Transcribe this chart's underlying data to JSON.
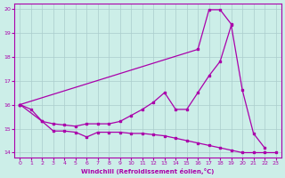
{
  "xlabel": "Windchill (Refroidissement éolien,°C)",
  "bg_color": "#cceee8",
  "line_color": "#aa00aa",
  "xlim": [
    -0.5,
    23.5
  ],
  "ylim": [
    13.8,
    20.2
  ],
  "xticks": [
    0,
    1,
    2,
    3,
    4,
    5,
    6,
    7,
    8,
    9,
    10,
    11,
    12,
    13,
    14,
    15,
    16,
    17,
    18,
    19,
    20,
    21,
    22,
    23
  ],
  "yticks": [
    14,
    15,
    16,
    17,
    18,
    19,
    20
  ],
  "line1_x": [
    0,
    1,
    2,
    3,
    4,
    5,
    6,
    7,
    8,
    9,
    10,
    11,
    12,
    13,
    14,
    15,
    16,
    17,
    18,
    19,
    20,
    21,
    22,
    23
  ],
  "line1_y": [
    16.0,
    15.8,
    15.3,
    14.9,
    14.9,
    14.85,
    14.65,
    14.85,
    14.85,
    14.85,
    14.8,
    14.8,
    14.75,
    14.7,
    14.6,
    14.5,
    14.4,
    14.3,
    14.2,
    14.1,
    14.0,
    14.0,
    14.0,
    14.0
  ],
  "line2_x": [
    0,
    2,
    3,
    4,
    5,
    6,
    7,
    8,
    9,
    10,
    11,
    12,
    13,
    14,
    15,
    16,
    17,
    18,
    19,
    20,
    21,
    22
  ],
  "line2_y": [
    16.0,
    15.3,
    15.2,
    15.15,
    15.1,
    15.2,
    15.2,
    15.2,
    15.3,
    15.55,
    15.8,
    16.1,
    16.5,
    15.8,
    15.8,
    16.5,
    17.2,
    17.8,
    19.3,
    16.6,
    14.8,
    14.2
  ],
  "line3_x": [
    0,
    16,
    17,
    18,
    19
  ],
  "line3_y": [
    16.0,
    18.3,
    19.95,
    19.95,
    19.35
  ]
}
